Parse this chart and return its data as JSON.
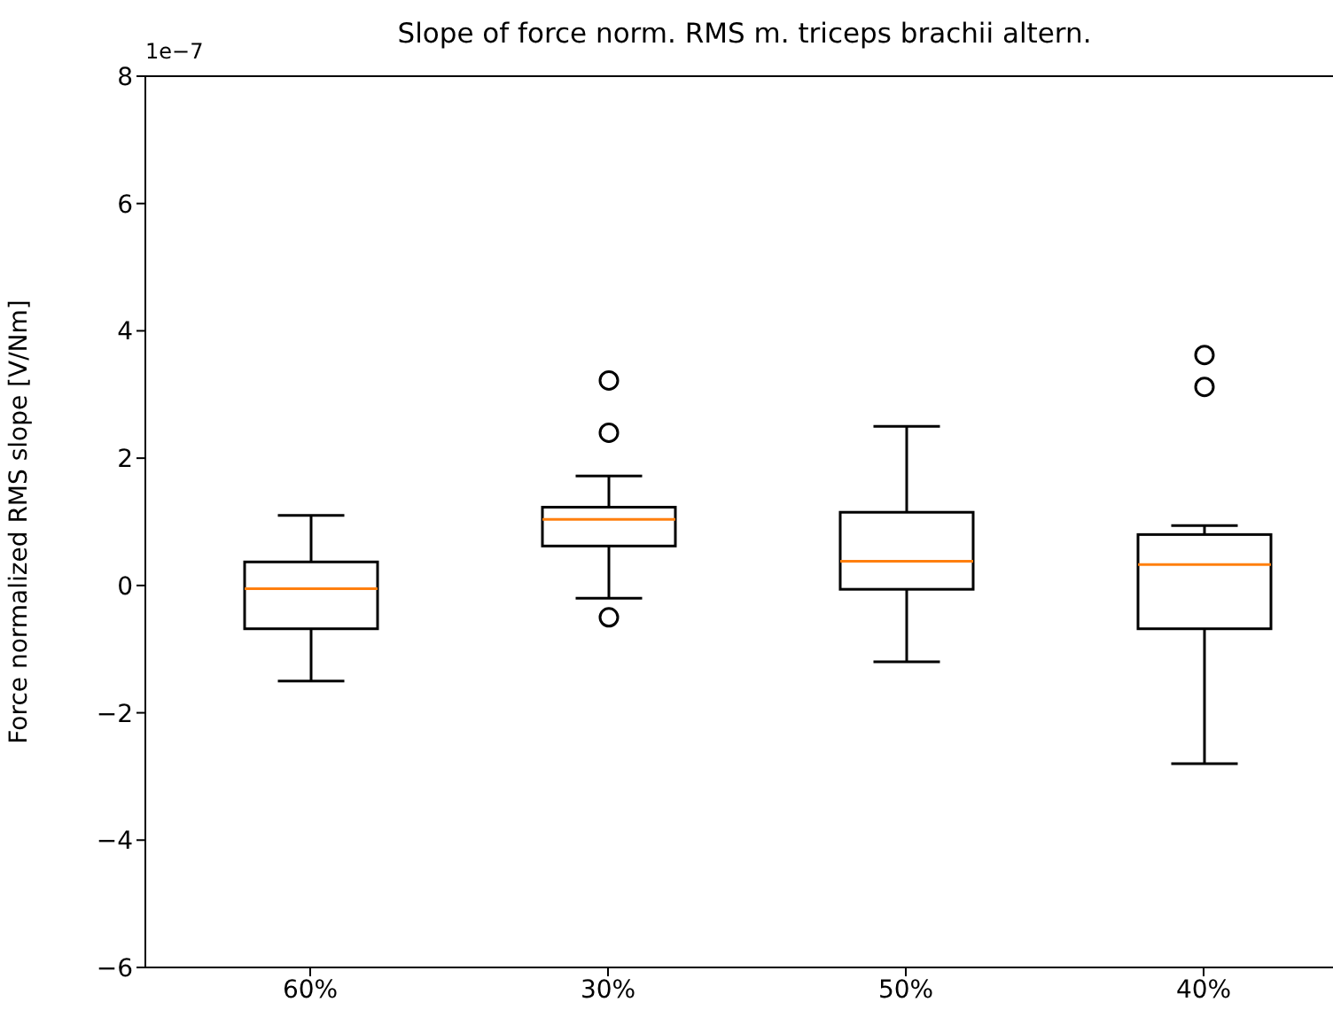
{
  "chart_data": {
    "type": "box",
    "title": "Slope of force norm. RMS m. triceps brachii altern.",
    "ylabel": "Force normalized RMS slope [V/Nm]",
    "annotations": [
      "1e−7"
    ],
    "categories": [
      "60%",
      "30%",
      "50%",
      "40%"
    ],
    "ylim": [
      -6,
      8
    ],
    "yticks": [
      -6,
      -4,
      -2,
      0,
      2,
      4,
      6,
      8
    ],
    "boxes": [
      {
        "low": -1.5,
        "q1": -0.68,
        "median": -0.05,
        "q3": 0.37,
        "high": 1.1
      },
      {
        "low": -0.2,
        "q1": 0.62,
        "median": 1.04,
        "q3": 1.23,
        "high": 1.72,
        "outliers": [
          3.22,
          2.4,
          -0.5
        ]
      },
      {
        "low": -1.2,
        "q1": -0.06,
        "median": 0.38,
        "q3": 1.15,
        "high": 2.5
      },
      {
        "low": -2.8,
        "q1": -0.68,
        "median": 0.33,
        "q3": 0.8,
        "high": 0.94,
        "outliers": [
          3.62,
          3.12
        ]
      }
    ]
  }
}
